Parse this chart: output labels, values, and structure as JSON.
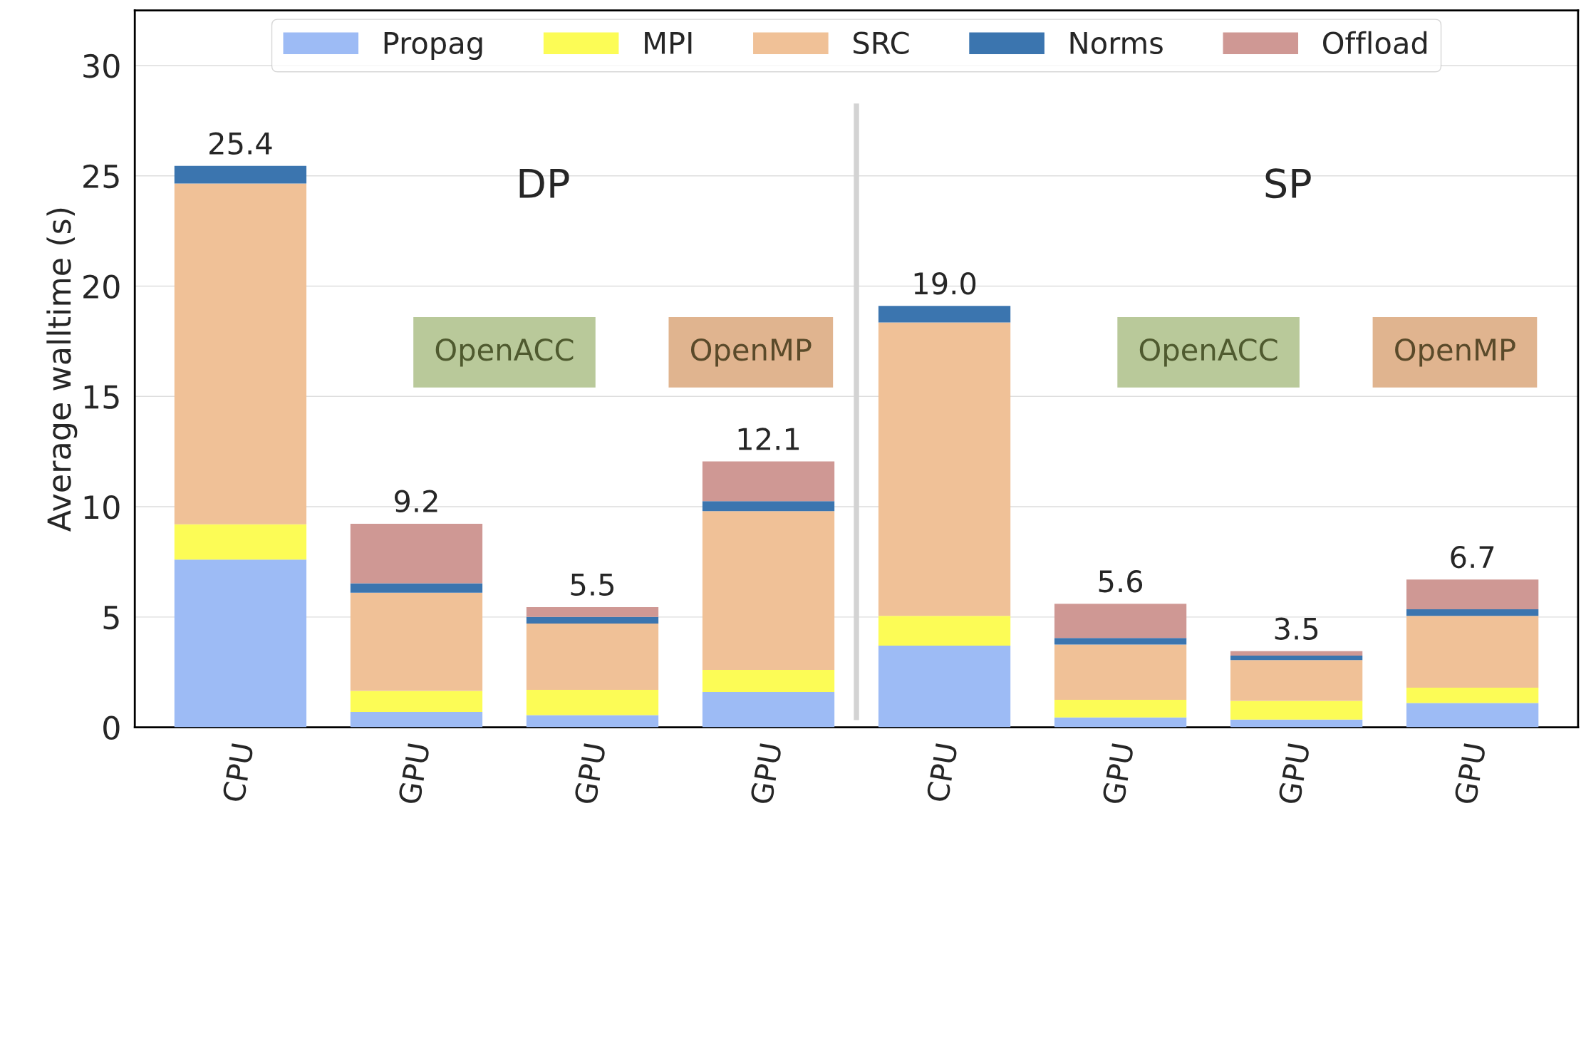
{
  "chart_data": {
    "type": "bar",
    "stacked": true,
    "ylabel": "Average walltime (s)",
    "categories": [
      "CPU",
      "GPU",
      "GPU",
      "GPU",
      "CPU",
      "GPU",
      "GPU",
      "GPU"
    ],
    "series": [
      {
        "name": "Propag",
        "color": "#9dbbf5",
        "values": [
          7.6,
          0.7,
          0.55,
          1.6,
          3.7,
          0.45,
          0.35,
          1.1
        ]
      },
      {
        "name": "MPI",
        "color": "#fcfc56",
        "values": [
          1.6,
          0.95,
          1.15,
          1.0,
          1.35,
          0.8,
          0.85,
          0.7
        ]
      },
      {
        "name": "SRC",
        "color": "#f0c197",
        "values": [
          15.45,
          4.45,
          3.0,
          7.2,
          13.3,
          2.5,
          1.85,
          3.25
        ]
      },
      {
        "name": "Norms",
        "color": "#3b75af",
        "values": [
          0.8,
          0.43,
          0.3,
          0.45,
          0.75,
          0.3,
          0.2,
          0.3
        ]
      },
      {
        "name": "Offload",
        "color": "#cf9894",
        "values": [
          null,
          2.7,
          0.45,
          1.8,
          null,
          1.55,
          0.2,
          1.35
        ]
      }
    ],
    "totals": [
      "25.4",
      "9.2",
      "5.5",
      "12.1",
      "19.0",
      "5.6",
      "3.5",
      "6.7"
    ],
    "ylim": [
      0,
      32.5
    ],
    "yticks": [
      0,
      5,
      10,
      15,
      20,
      25,
      30
    ],
    "grid": "y",
    "legend": "top",
    "annotations": [
      "DP",
      "SP",
      "OpenACC",
      "OpenMP",
      "OpenACC",
      "OpenMP"
    ]
  }
}
